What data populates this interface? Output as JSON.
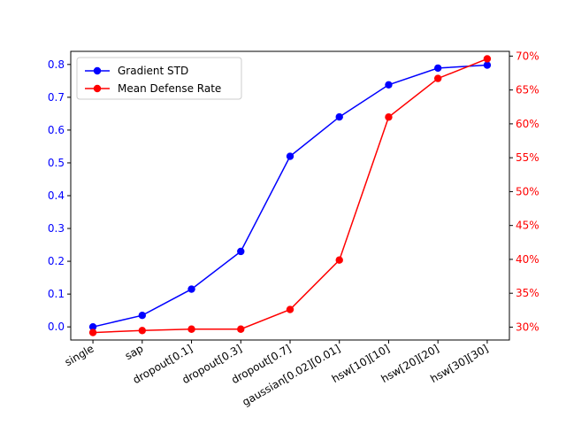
{
  "chart_data": {
    "type": "line",
    "title": "",
    "xlabel": "",
    "categories": [
      "single",
      "sap",
      "dropout[0.1]",
      "dropout[0.3]",
      "dropout[0.7]",
      "gaussian[0.02][0.01]",
      "hsw[10][10]",
      "hsw[20][20]",
      "hsw[30][30]"
    ],
    "left_axis": {
      "color": "#0000ff",
      "range": [
        -0.04,
        0.84
      ],
      "ticks": [
        0.0,
        0.1,
        0.2,
        0.3,
        0.4,
        0.5,
        0.6,
        0.7,
        0.8
      ],
      "tick_labels": [
        "0.0",
        "0.1",
        "0.2",
        "0.3",
        "0.4",
        "0.5",
        "0.6",
        "0.7",
        "0.8"
      ]
    },
    "right_axis": {
      "color": "#ff0000",
      "range": [
        28.1,
        70.7
      ],
      "ticks": [
        30,
        35,
        40,
        45,
        50,
        55,
        60,
        65,
        70
      ],
      "tick_labels": [
        "30%",
        "35%",
        "40%",
        "45%",
        "50%",
        "55%",
        "60%",
        "65%",
        "70%"
      ]
    },
    "series": [
      {
        "name": "Gradient STD",
        "axis": "left",
        "color": "#0000ff",
        "values": [
          0.0,
          0.035,
          0.115,
          0.23,
          0.52,
          0.64,
          0.738,
          0.789,
          0.798
        ]
      },
      {
        "name": "Mean Defense Rate",
        "axis": "right",
        "color": "#ff0000",
        "values": [
          29.2,
          29.5,
          29.7,
          29.7,
          32.6,
          39.9,
          61.0,
          66.7,
          69.6
        ]
      }
    ],
    "legend_position": "upper-left"
  }
}
